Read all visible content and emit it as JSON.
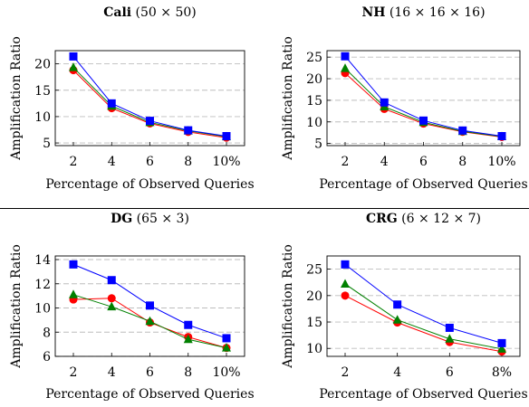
{
  "chart_data": [
    {
      "type": "line",
      "title_bold": "Cali",
      "title_rest": " (50 × 50)",
      "xlabel": "Percentage of Observed Queries",
      "ylabel": "Amplification Ratio",
      "x": [
        2,
        4,
        6,
        8,
        10
      ],
      "xtick_labels": [
        "2",
        "4",
        "6",
        "8",
        "10%"
      ],
      "ylim": [
        4.5,
        22.5
      ],
      "yticks": [
        5,
        10,
        15,
        20
      ],
      "grid": "horizontal dashed",
      "series": [
        {
          "color": "#0000ff",
          "marker": "square",
          "values": [
            21.4,
            12.5,
            9.2,
            7.4,
            6.3
          ]
        },
        {
          "color": "#008000",
          "marker": "triangle",
          "values": [
            19.3,
            12.0,
            8.9,
            7.3,
            6.2
          ]
        },
        {
          "color": "#ff0000",
          "marker": "circle",
          "values": [
            18.8,
            11.6,
            8.7,
            7.1,
            6.0
          ]
        }
      ]
    },
    {
      "type": "line",
      "title_bold": "NH",
      "title_rest": " (16 × 16 × 16)",
      "xlabel": "Percentage of Observed Queries",
      "ylabel": "Amplification Ratio",
      "x": [
        2,
        4,
        6,
        8,
        10
      ],
      "xtick_labels": [
        "2",
        "4",
        "6",
        "8",
        "10%"
      ],
      "ylim": [
        4.5,
        26.5
      ],
      "yticks": [
        5,
        10,
        15,
        20,
        25
      ],
      "grid": "horizontal dashed",
      "series": [
        {
          "color": "#0000ff",
          "marker": "square",
          "values": [
            25.2,
            14.5,
            10.3,
            8.0,
            6.7
          ]
        },
        {
          "color": "#008000",
          "marker": "triangle",
          "values": [
            22.4,
            13.5,
            9.9,
            7.8,
            6.6
          ]
        },
        {
          "color": "#ff0000",
          "marker": "circle",
          "values": [
            21.3,
            13.0,
            9.6,
            7.7,
            6.5
          ]
        }
      ]
    },
    {
      "type": "line",
      "title_bold": "DG",
      "title_rest": " (65 × 3)",
      "xlabel": "Percentage of Observed Queries",
      "ylabel": "Amplification Ratio",
      "x": [
        2,
        4,
        6,
        8,
        10
      ],
      "xtick_labels": [
        "2",
        "4",
        "6",
        "8",
        "10%"
      ],
      "ylim": [
        6,
        14.3
      ],
      "yticks": [
        6,
        8,
        10,
        12,
        14
      ],
      "grid": "horizontal dashed",
      "series": [
        {
          "color": "#0000ff",
          "marker": "square",
          "values": [
            13.6,
            12.3,
            10.2,
            8.6,
            7.5
          ]
        },
        {
          "color": "#008000",
          "marker": "triangle",
          "values": [
            11.1,
            10.1,
            8.9,
            7.4,
            6.7
          ]
        },
        {
          "color": "#ff0000",
          "marker": "circle",
          "values": [
            10.7,
            10.8,
            8.8,
            7.6,
            6.7
          ]
        }
      ]
    },
    {
      "type": "line",
      "title_bold": "CRG",
      "title_rest": " (6 × 12 × 7)",
      "xlabel": "Percentage of Observed Queries",
      "ylabel": "Amplification Ratio",
      "x": [
        2,
        4,
        6,
        8
      ],
      "xtick_labels": [
        "2",
        "4",
        "6",
        "8%"
      ],
      "ylim": [
        8.5,
        27.5
      ],
      "yticks": [
        10,
        15,
        20,
        25
      ],
      "grid": "horizontal dashed",
      "series": [
        {
          "color": "#0000ff",
          "marker": "square",
          "values": [
            25.9,
            18.3,
            13.9,
            11.0
          ]
        },
        {
          "color": "#008000",
          "marker": "triangle",
          "values": [
            22.2,
            15.4,
            11.8,
            9.9
          ]
        },
        {
          "color": "#ff0000",
          "marker": "circle",
          "values": [
            20.0,
            14.9,
            11.2,
            9.4
          ]
        }
      ]
    }
  ]
}
